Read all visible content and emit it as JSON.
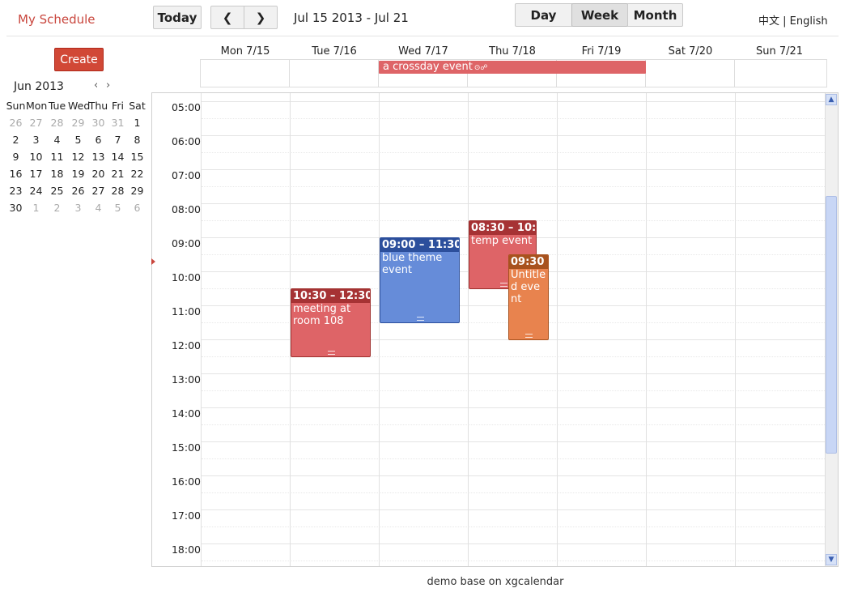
{
  "header": {
    "app_title": "My Schedule",
    "today_label": "Today",
    "prev_label": "❮",
    "next_label": "❯",
    "date_range": "Jul 15 2013 - Jul 21",
    "views": {
      "day": "Day",
      "week": "Week",
      "month": "Month"
    },
    "active_view": "Week",
    "lang_zh": "中文",
    "lang_sep": " | ",
    "lang_en": "English"
  },
  "sidebar": {
    "create_label": "Create",
    "mini_calendar": {
      "title": "Jun 2013",
      "prev": "‹",
      "next": "›",
      "weekdays": [
        "Sun",
        "Mon",
        "Tue",
        "Wed",
        "Thu",
        "Fri",
        "Sat"
      ],
      "weeks": [
        [
          "26",
          "27",
          "28",
          "29",
          "30",
          "31",
          "1"
        ],
        [
          "2",
          "3",
          "4",
          "5",
          "6",
          "7",
          "8"
        ],
        [
          "9",
          "10",
          "11",
          "12",
          "13",
          "14",
          "15"
        ],
        [
          "16",
          "17",
          "18",
          "19",
          "20",
          "21",
          "22"
        ],
        [
          "23",
          "24",
          "25",
          "26",
          "27",
          "28",
          "29"
        ],
        [
          "30",
          "1",
          "2",
          "3",
          "4",
          "5",
          "6"
        ]
      ]
    }
  },
  "week": {
    "days": [
      "Mon 7/15",
      "Tue 7/16",
      "Wed 7/17",
      "Thu 7/18",
      "Fri 7/19",
      "Sat 7/20",
      "Sun 7/21"
    ],
    "hours": [
      "05:00",
      "06:00",
      "07:00",
      "08:00",
      "09:00",
      "10:00",
      "11:00",
      "12:00",
      "13:00",
      "14:00",
      "15:00",
      "16:00",
      "17:00",
      "18:00"
    ]
  },
  "allday_events": [
    {
      "title": "a crossday event",
      "icons": "⊙☍",
      "color": "#de6467"
    }
  ],
  "events": [
    {
      "id": "ev1",
      "time": "10:30 – 12:30",
      "title": "meeting at room 108",
      "color": "#de6467"
    },
    {
      "id": "ev2",
      "time": "09:00 – 11:30",
      "title": "blue theme event",
      "color": "#668cd9"
    },
    {
      "id": "ev3",
      "time": "08:30 – 10:",
      "title": "temp event",
      "color": "#de6467"
    },
    {
      "id": "ev4",
      "time": "09:30",
      "title": "Untitled event",
      "color": "#e8834e"
    }
  ],
  "footer": "demo base on xgcalendar"
}
